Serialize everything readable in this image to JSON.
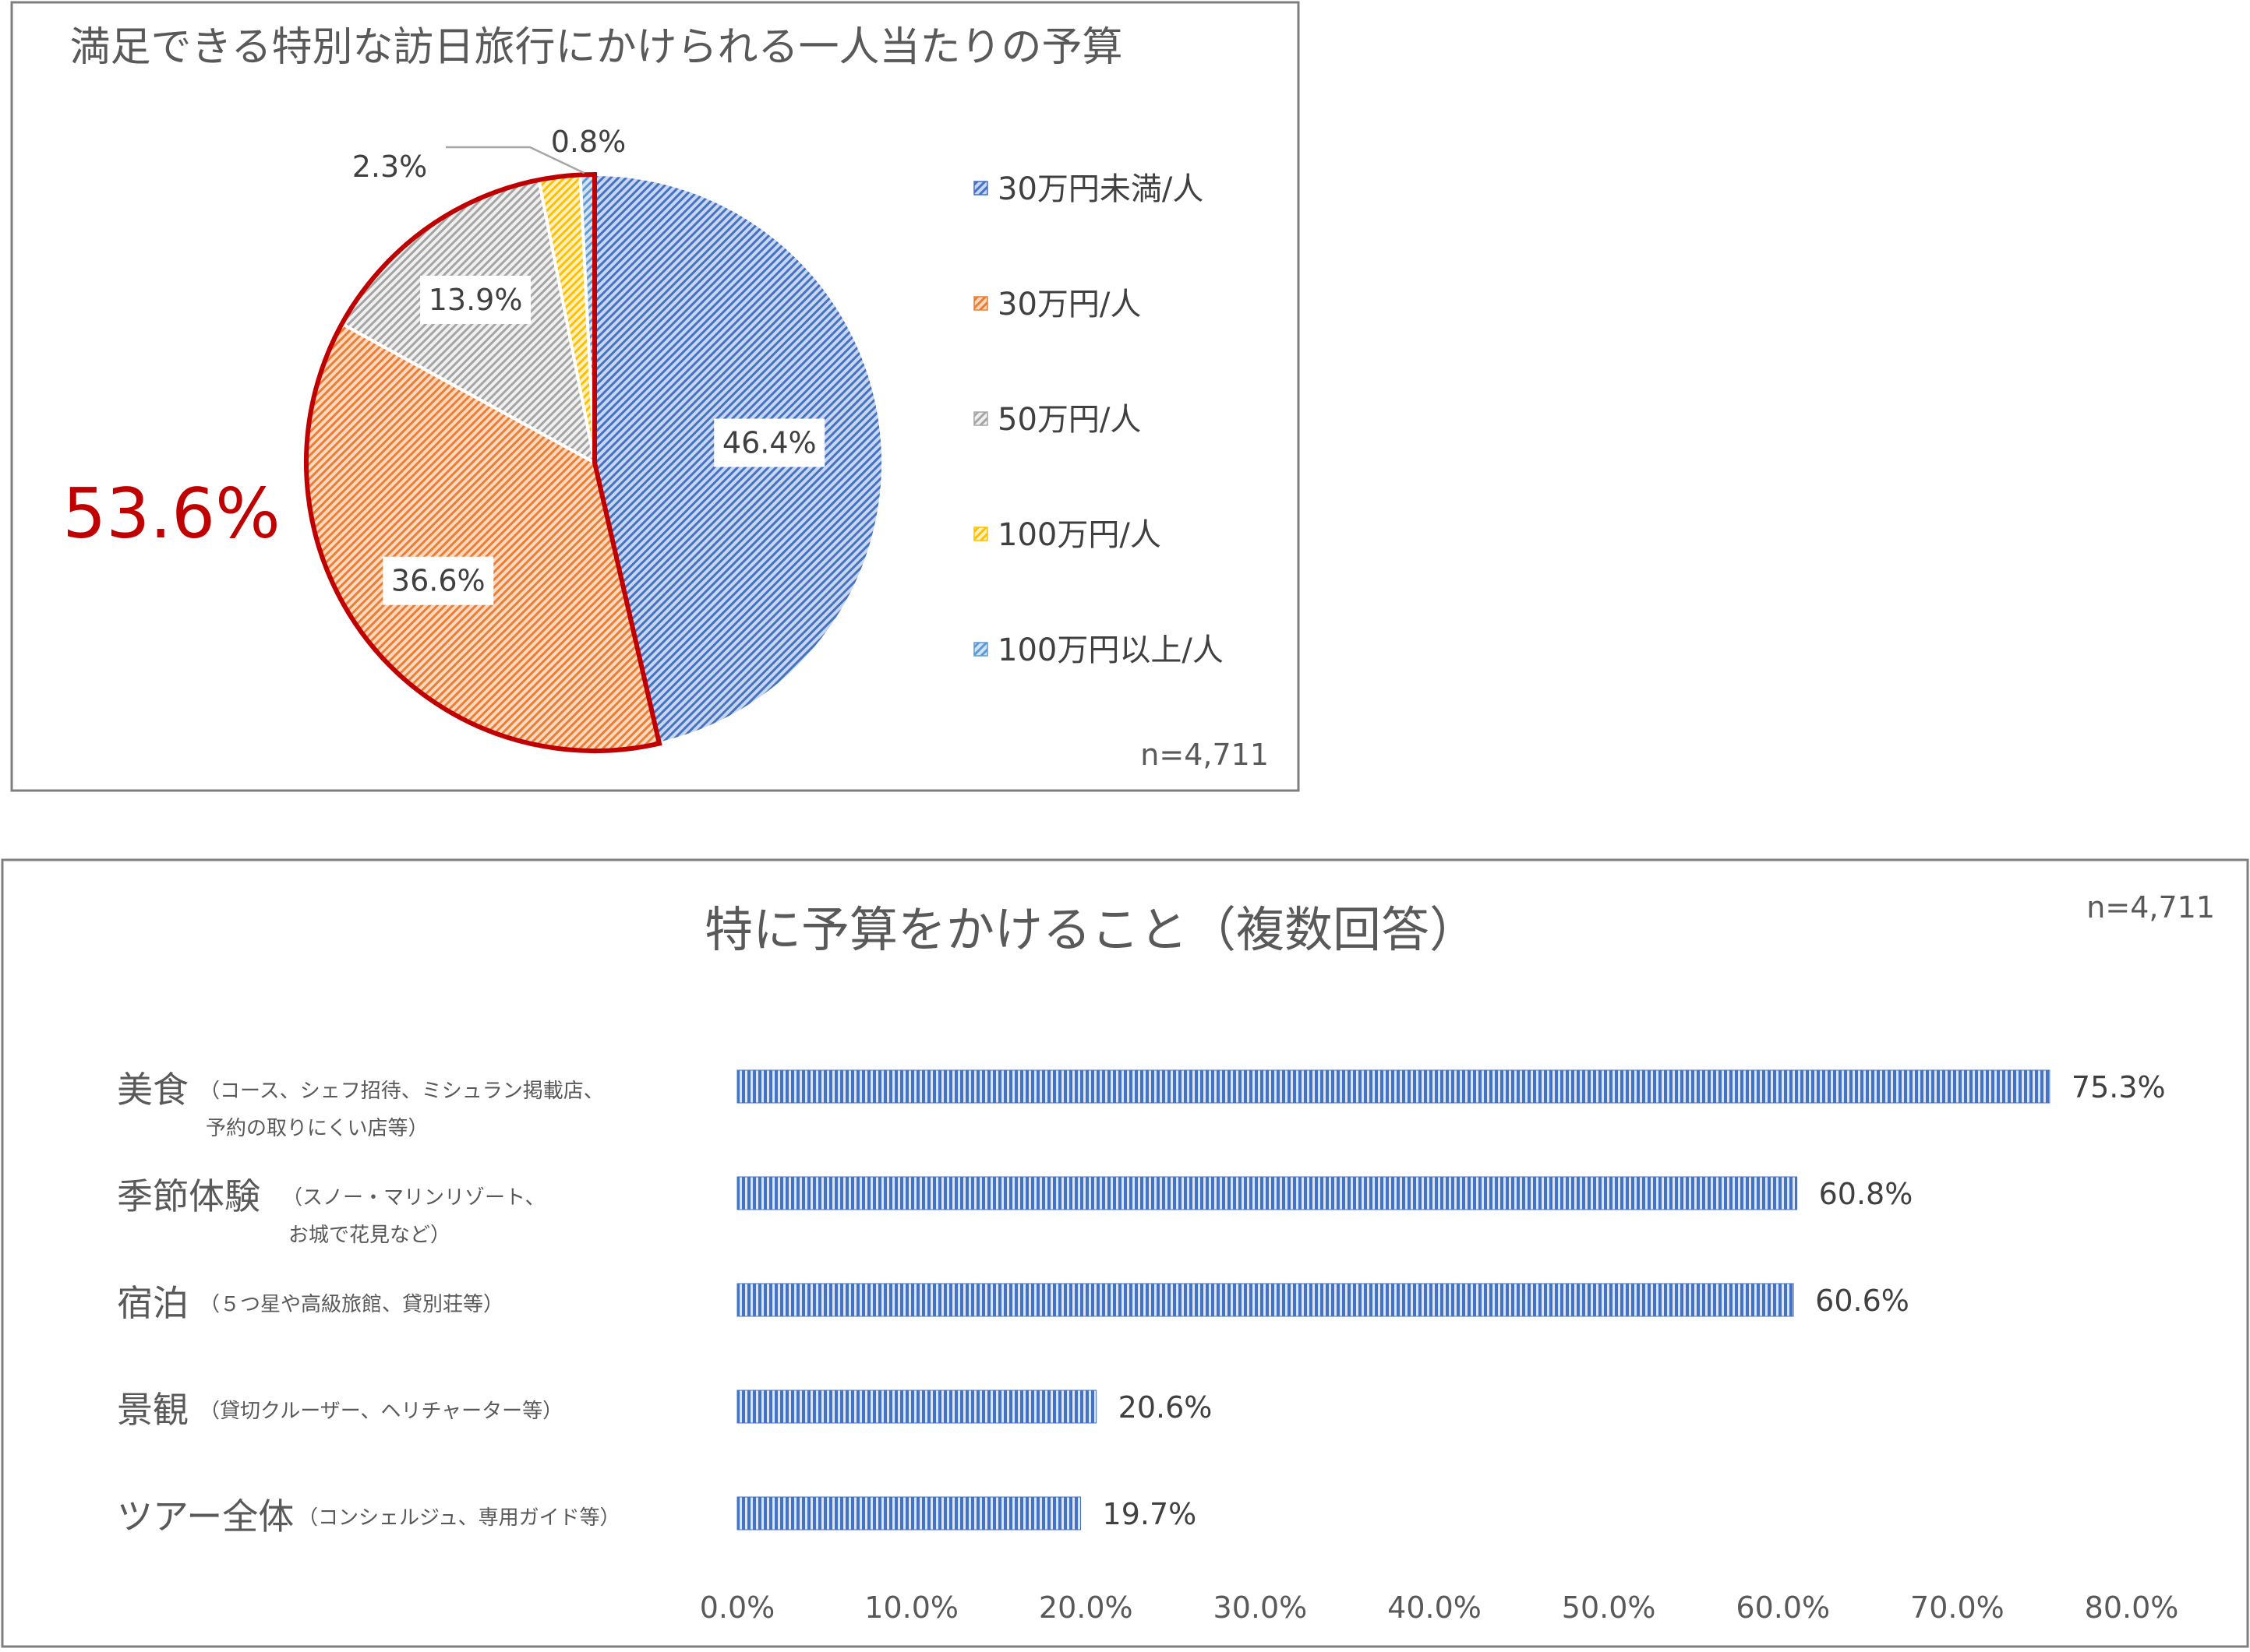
{
  "chart_data": [
    {
      "type": "pie",
      "title": "満足できる特別な訪日旅行にかけられる一人当たりの予算",
      "sample_size": "n=4,711",
      "highlight_label": "53.6%",
      "categories": [
        "30万円未満/人",
        "30万円/人",
        "50万円/人",
        "100万円/人",
        "100万円以上/人"
      ],
      "values": [
        46.4,
        36.6,
        13.9,
        2.3,
        0.8
      ],
      "data_labels": [
        "46.4%",
        "36.6%",
        "13.9%",
        "2.3%",
        "0.8%"
      ],
      "colors": [
        "#4472C4",
        "#ED7D31",
        "#A5A5A5",
        "#FFC000",
        "#5B9BD5"
      ],
      "highlight_color": "#C00000",
      "legend": "right"
    },
    {
      "type": "bar",
      "orientation": "horizontal",
      "title": "特に予算をかけること（複数回答）",
      "sample_size": "n=4,711",
      "categories": [
        {
          "main": "美食",
          "sub": [
            "（コース、シェフ招待、ミシュラン掲載店、",
            "予約の取りにくい店等）"
          ]
        },
        {
          "main": "季節体験",
          "sub": [
            "（スノー・マリンリゾート、",
            "お城で花見など）"
          ]
        },
        {
          "main": "宿泊",
          "sub": [
            "（５つ星や高級旅館、貸別荘等）"
          ]
        },
        {
          "main": "景観",
          "sub": [
            "（貸切クルーザー、ヘリチャーター等）"
          ]
        },
        {
          "main": "ツアー全体",
          "sub": [
            "（コンシェルジュ、専用ガイド等）"
          ]
        }
      ],
      "values": [
        75.3,
        60.8,
        60.6,
        20.6,
        19.7
      ],
      "data_labels": [
        "75.3%",
        "60.8%",
        "60.6%",
        "20.6%",
        "19.7%"
      ],
      "xlim": [
        0,
        80
      ],
      "xticks": [
        "0.0%",
        "10.0%",
        "20.0%",
        "30.0%",
        "40.0%",
        "50.0%",
        "60.0%",
        "70.0%",
        "80.0%"
      ],
      "bar_color": "#4472C4",
      "grid": false
    }
  ]
}
